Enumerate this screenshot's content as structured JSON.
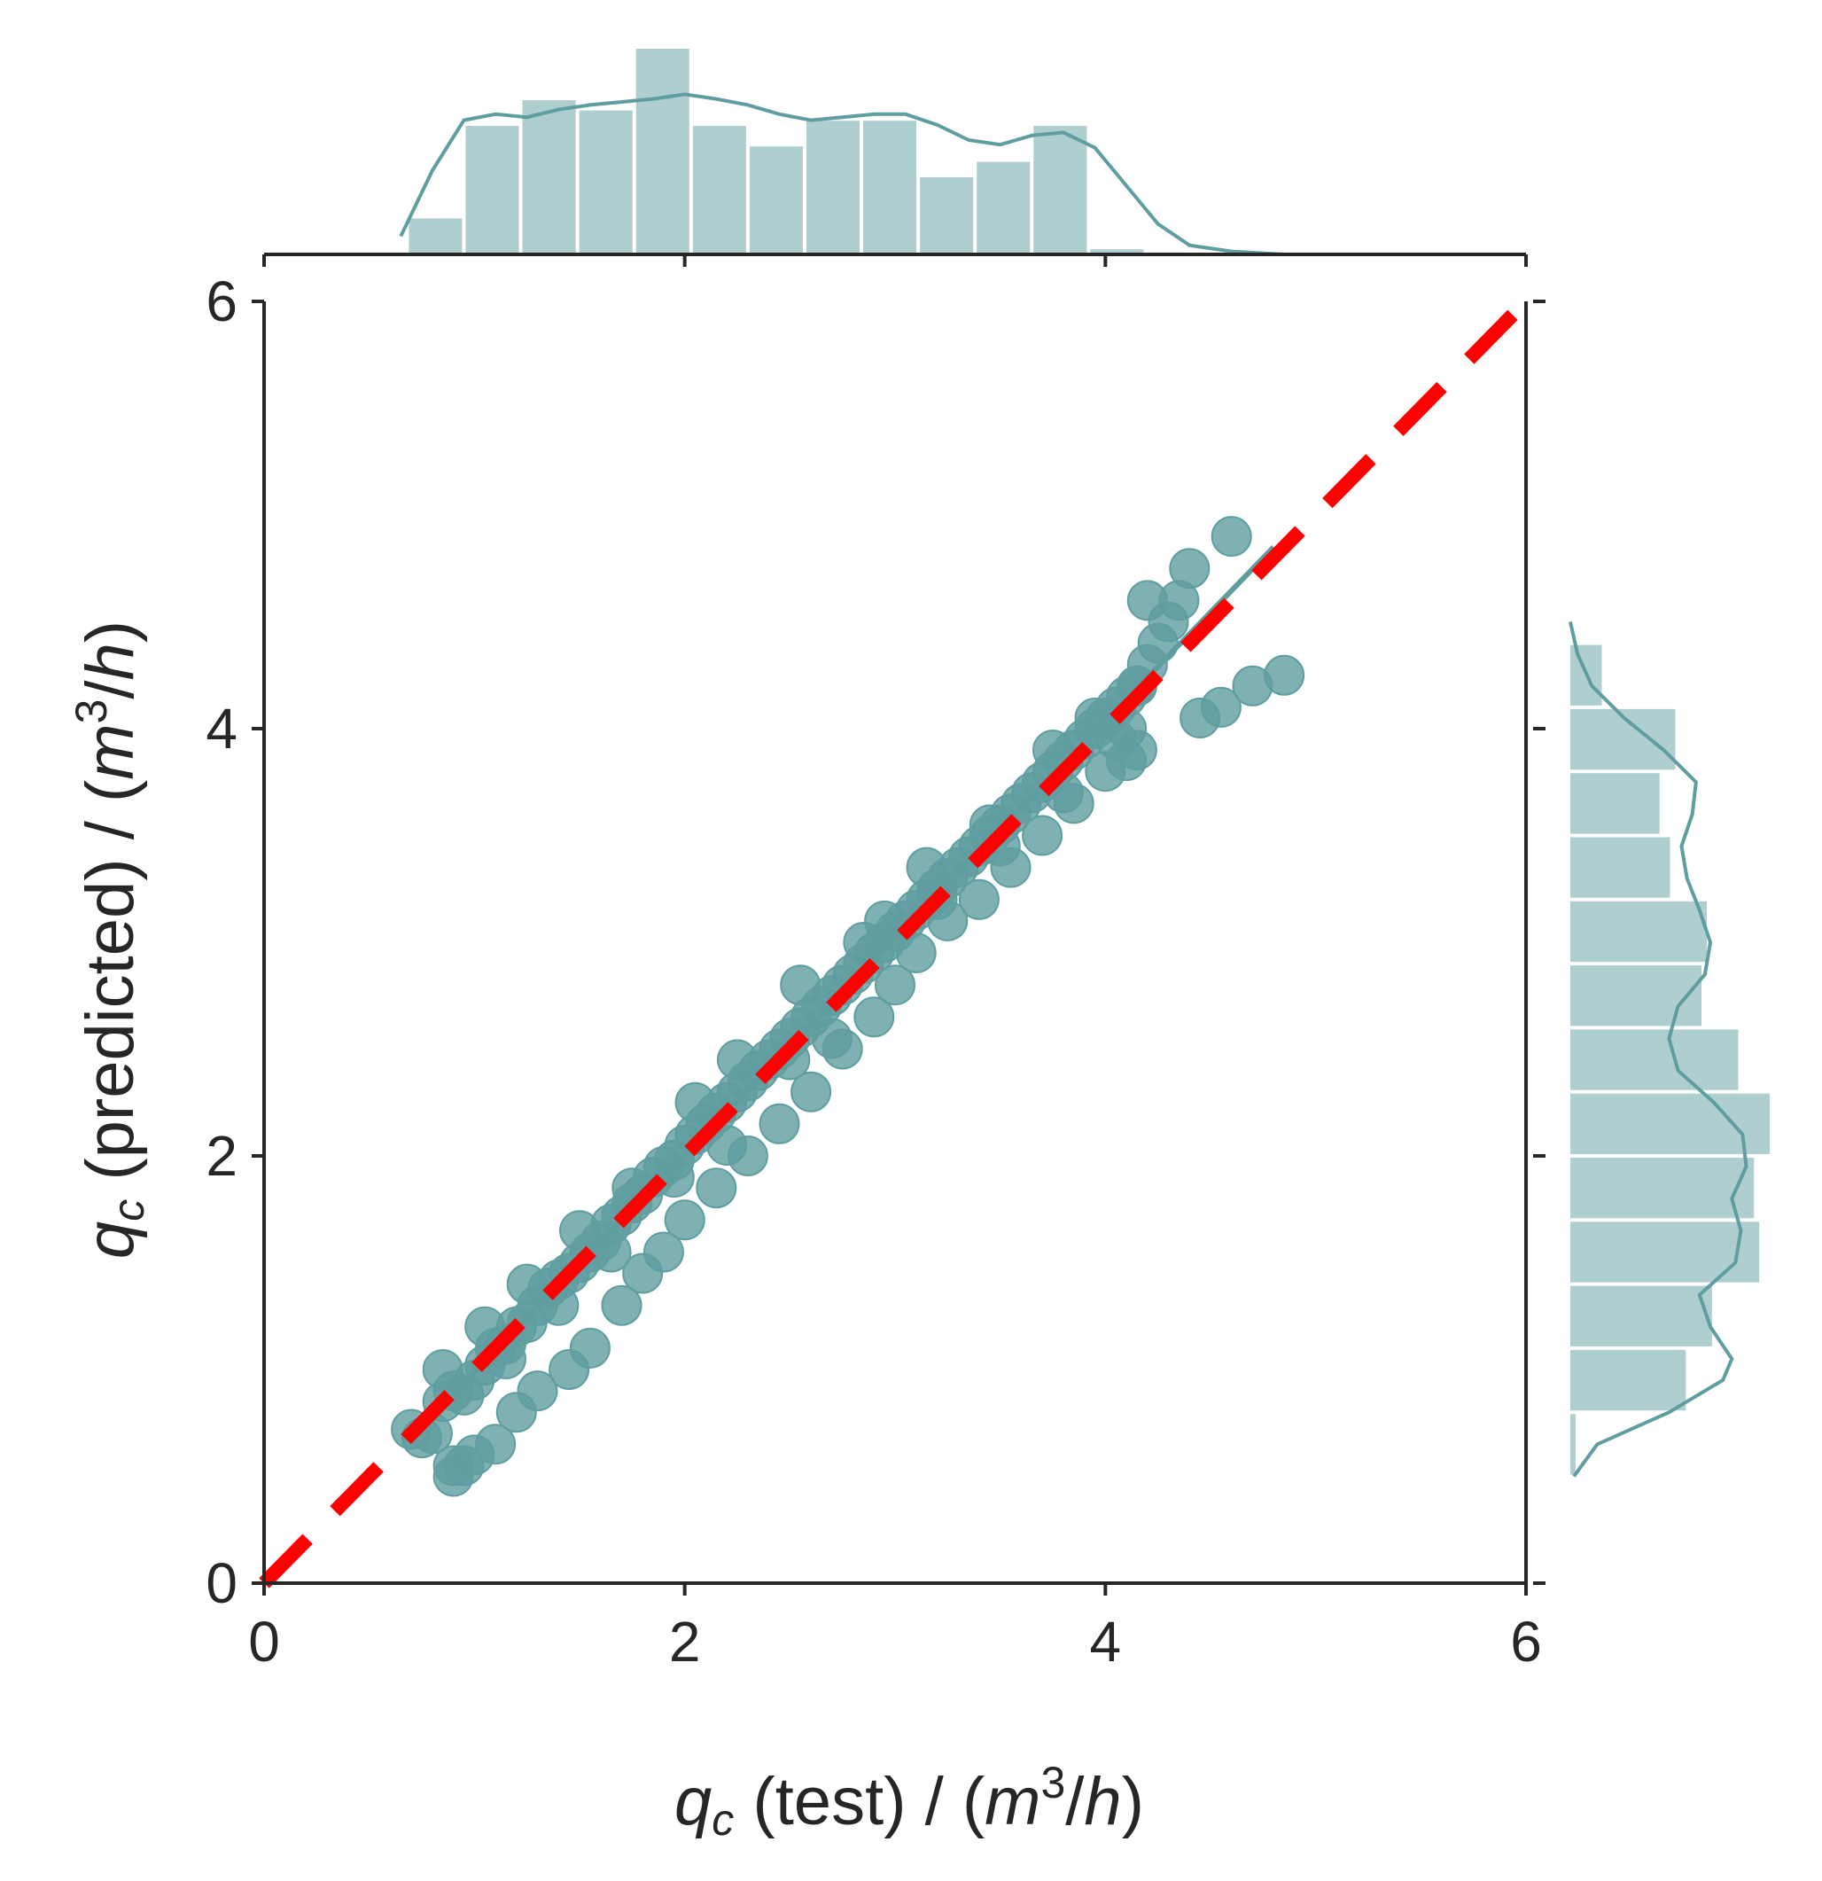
{
  "chart_data": {
    "type": "scatter",
    "title": "",
    "xlabel": {
      "q": "q",
      "sub": "c",
      "mid": " (test) / (",
      "m": "m",
      "exp": "3",
      "slash": "/",
      "h": "h",
      "close": ")"
    },
    "ylabel": {
      "q": "q",
      "sub": "c",
      "mid": " (predicted) / (",
      "m": "m",
      "exp": "3",
      "slash": "/",
      "h": "h",
      "close": ")"
    },
    "xlim": [
      0,
      6
    ],
    "ylim": [
      0,
      6
    ],
    "xticks": [
      0,
      2,
      4,
      6
    ],
    "yticks": [
      0,
      2,
      4,
      6
    ],
    "xtick_labels": [
      "0",
      "2",
      "4",
      "6"
    ],
    "ytick_labels": [
      "0",
      "2",
      "4",
      "6"
    ],
    "colors": {
      "points": "#5f9ea0",
      "reference_line": "#ff0000",
      "axis": "#262626",
      "hist": "#5f9ea0"
    },
    "reference_line": {
      "x": [
        0,
        6
      ],
      "y": [
        0,
        6
      ],
      "style": "dashed"
    },
    "regression_line": {
      "x": [
        0.7,
        4.8
      ],
      "y": [
        0.68,
        4.85
      ]
    },
    "series": [
      {
        "name": "samples",
        "x": [
          0.7,
          0.75,
          0.8,
          0.85,
          0.9,
          0.95,
          1.0,
          1.05,
          1.1,
          1.15,
          1.2,
          1.25,
          1.3,
          1.35,
          1.4,
          1.45,
          1.5,
          1.55,
          1.6,
          1.65,
          1.7,
          1.75,
          1.8,
          1.85,
          1.9,
          1.95,
          2.0,
          2.05,
          2.1,
          2.15,
          2.2,
          2.25,
          2.3,
          2.35,
          2.4,
          2.45,
          2.5,
          2.55,
          2.6,
          2.65,
          2.7,
          2.75,
          2.8,
          2.85,
          2.9,
          2.95,
          3.0,
          3.05,
          3.1,
          3.15,
          3.2,
          3.25,
          3.3,
          3.35,
          3.4,
          3.45,
          3.5,
          3.55,
          3.6,
          3.65,
          3.7,
          3.75,
          3.8,
          3.85,
          3.9,
          3.95,
          4.0,
          4.05,
          4.1,
          4.15,
          4.2,
          4.25,
          4.3,
          4.35,
          4.4,
          0.9,
          0.95,
          1.0,
          1.1,
          1.2,
          1.3,
          1.45,
          1.55,
          1.7,
          1.8,
          1.9,
          2.0,
          2.15,
          2.3,
          2.45,
          2.6,
          2.75,
          2.9,
          3.0,
          3.1,
          3.25,
          3.4,
          3.55,
          3.7,
          3.85,
          4.0,
          4.1,
          4.15,
          0.85,
          1.05,
          1.25,
          1.5,
          1.75,
          2.05,
          2.25,
          2.55,
          2.85,
          3.15,
          3.45,
          3.75,
          3.95,
          4.15,
          4.45,
          4.55,
          4.7,
          4.85,
          4.6,
          4.2,
          4.1,
          0.9,
          1.15,
          1.4,
          1.65,
          1.95,
          2.2,
          2.5,
          2.7,
          2.95,
          3.2,
          3.5,
          3.8,
          4.05
        ],
        "y": [
          0.72,
          0.68,
          0.7,
          0.85,
          0.9,
          0.88,
          0.95,
          1.02,
          1.1,
          1.12,
          1.2,
          1.22,
          1.3,
          1.38,
          1.42,
          1.45,
          1.5,
          1.55,
          1.6,
          1.68,
          1.72,
          1.78,
          1.82,
          1.9,
          1.95,
          1.98,
          2.05,
          2.1,
          2.15,
          2.2,
          2.25,
          2.3,
          2.35,
          2.4,
          2.45,
          2.5,
          2.55,
          2.6,
          2.65,
          2.7,
          2.75,
          2.8,
          2.85,
          2.9,
          2.95,
          3.0,
          3.05,
          3.1,
          3.15,
          3.2,
          3.25,
          3.3,
          3.35,
          3.4,
          3.45,
          3.5,
          3.55,
          3.6,
          3.65,
          3.7,
          3.75,
          3.8,
          3.85,
          3.9,
          3.95,
          4.0,
          4.05,
          4.1,
          4.15,
          4.2,
          4.3,
          4.4,
          4.5,
          4.6,
          4.75,
          0.5,
          0.55,
          0.6,
          0.65,
          0.8,
          0.9,
          1.0,
          1.1,
          1.3,
          1.45,
          1.55,
          1.7,
          1.85,
          2.0,
          2.15,
          2.3,
          2.5,
          2.65,
          2.8,
          2.95,
          3.1,
          3.2,
          3.35,
          3.5,
          3.65,
          3.8,
          3.85,
          3.9,
          1.0,
          1.2,
          1.4,
          1.65,
          1.85,
          2.25,
          2.45,
          2.8,
          3.0,
          3.35,
          3.55,
          3.9,
          4.05,
          4.2,
          4.05,
          4.1,
          4.2,
          4.25,
          4.9,
          4.6,
          4.0,
          0.55,
          1.05,
          1.3,
          1.55,
          1.9,
          2.05,
          2.45,
          2.55,
          3.1,
          3.2,
          3.45,
          3.7,
          3.95
        ]
      }
    ],
    "top_histogram": {
      "bins": [
        0.68,
        0.95,
        1.22,
        1.49,
        1.76,
        2.03,
        2.3,
        2.57,
        2.84,
        3.11,
        3.38,
        3.65,
        3.92,
        4.19,
        4.46,
        4.73
      ],
      "counts": [
        7,
        25,
        30,
        28,
        40,
        25,
        21,
        26,
        26,
        15,
        18,
        25,
        1,
        0,
        0
      ],
      "kde_x": [
        0.65,
        0.8,
        0.95,
        1.1,
        1.25,
        1.4,
        1.55,
        1.7,
        1.85,
        2.0,
        2.15,
        2.3,
        2.45,
        2.6,
        2.75,
        2.9,
        3.05,
        3.2,
        3.35,
        3.5,
        3.65,
        3.8,
        3.95,
        4.1,
        4.25,
        4.4,
        4.6,
        4.85
      ],
      "kde_y": [
        0.12,
        0.55,
        0.88,
        0.92,
        0.9,
        0.95,
        0.98,
        1.0,
        1.02,
        1.05,
        1.02,
        0.98,
        0.92,
        0.88,
        0.9,
        0.92,
        0.92,
        0.85,
        0.75,
        0.72,
        0.78,
        0.8,
        0.7,
        0.45,
        0.2,
        0.06,
        0.02,
        0.0
      ]
    },
    "right_histogram": {
      "bins": [
        0.5,
        0.8,
        1.1,
        1.4,
        1.7,
        2.0,
        2.3,
        2.6,
        2.9,
        3.2,
        3.5,
        3.8,
        4.1,
        4.4
      ],
      "counts": [
        1,
        22,
        27,
        36,
        35,
        38,
        32,
        25,
        26,
        19,
        17,
        20,
        6
      ],
      "kde_y": [
        0.5,
        0.65,
        0.8,
        0.95,
        1.05,
        1.2,
        1.35,
        1.5,
        1.65,
        1.8,
        1.95,
        2.1,
        2.25,
        2.4,
        2.55,
        2.7,
        2.85,
        3.0,
        3.15,
        3.3,
        3.45,
        3.6,
        3.75,
        3.9,
        4.05,
        4.2,
        4.35,
        4.5
      ],
      "kde_x": [
        0.02,
        0.15,
        0.55,
        0.85,
        0.9,
        0.78,
        0.72,
        0.92,
        0.95,
        0.9,
        0.98,
        0.96,
        0.8,
        0.6,
        0.55,
        0.6,
        0.75,
        0.78,
        0.72,
        0.65,
        0.62,
        0.68,
        0.7,
        0.52,
        0.3,
        0.12,
        0.04,
        0.0
      ]
    }
  }
}
